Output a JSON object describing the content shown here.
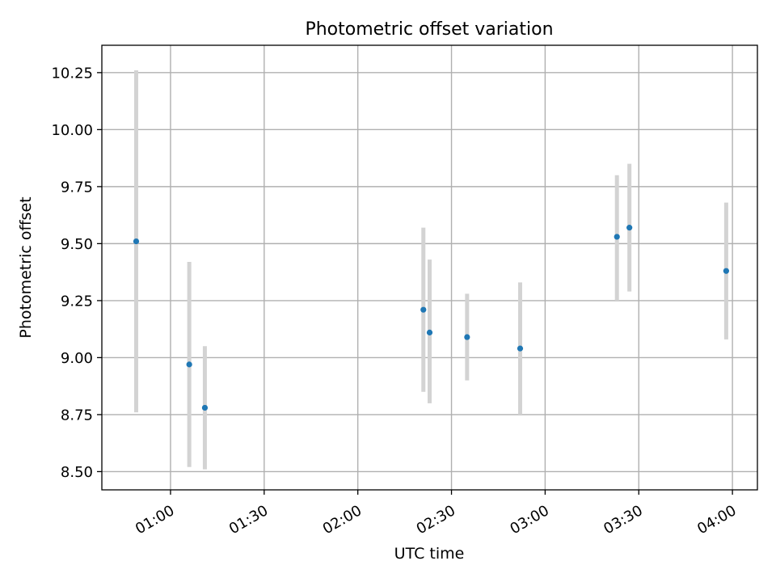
{
  "chart_data": {
    "type": "scatter",
    "title": "Photometric offset variation",
    "xlabel": "UTC time",
    "ylabel": "Photometric offset",
    "grid": true,
    "x_ticks": [
      "01:00",
      "01:30",
      "02:00",
      "02:30",
      "03:00",
      "03:30",
      "04:00"
    ],
    "y_ticks": [
      "8.50",
      "8.75",
      "9.00",
      "9.25",
      "9.50",
      "9.75",
      "10.00",
      "10.25"
    ],
    "xlim": [
      "00:38",
      "04:08"
    ],
    "ylim": [
      8.42,
      10.37
    ],
    "points": [
      {
        "x": "00:49",
        "y": 9.51,
        "y_low": 8.76,
        "y_high": 10.26
      },
      {
        "x": "01:06",
        "y": 8.97,
        "y_low": 8.52,
        "y_high": 9.42
      },
      {
        "x": "01:11",
        "y": 8.78,
        "y_low": 8.51,
        "y_high": 9.05
      },
      {
        "x": "02:21",
        "y": 9.21,
        "y_low": 8.85,
        "y_high": 9.57
      },
      {
        "x": "02:23",
        "y": 9.11,
        "y_low": 8.8,
        "y_high": 9.43
      },
      {
        "x": "02:35",
        "y": 9.09,
        "y_low": 8.9,
        "y_high": 9.28
      },
      {
        "x": "02:52",
        "y": 9.04,
        "y_low": 8.75,
        "y_high": 9.33
      },
      {
        "x": "03:23",
        "y": 9.53,
        "y_low": 9.25,
        "y_high": 9.8
      },
      {
        "x": "03:27",
        "y": 9.57,
        "y_low": 9.29,
        "y_high": 9.85
      },
      {
        "x": "03:58",
        "y": 9.38,
        "y_low": 9.08,
        "y_high": 9.68
      }
    ],
    "colors": {
      "point": "#1f77b4",
      "errorbar": "#d3d3d3",
      "grid": "#b0b0b0",
      "axes": "#000000"
    }
  }
}
